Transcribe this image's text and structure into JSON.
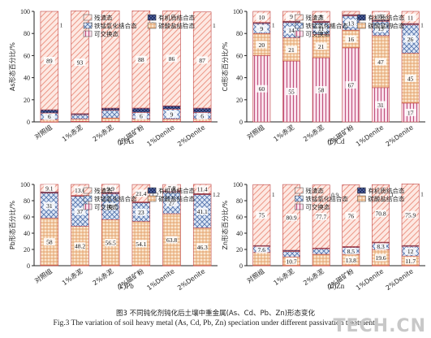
{
  "figure": {
    "caption_cn": "图3 不同钝化剂钝化后土壤中重金属(As、Cd、Pb、Zn)形态变化",
    "caption_en": "Fig.3 The variation of soil heavy metal (As, Cd, Pb, Zn) speciation under different passivation treatments",
    "watermark": "TECH.CN"
  },
  "colors": {
    "residual": "#f0a090",
    "organic": "#3a4f8c",
    "femn": "#9fb6d9",
    "carbonate": "#f2c08c",
    "exchangeable": "#c0507c",
    "bar_border": "#c04545",
    "axis": "#222222"
  },
  "chart_data": [
    {
      "type": "bar",
      "stacked": true,
      "panel_label": "(a)As",
      "ylabel": "As形态百分比/%",
      "ylim": [
        0,
        100
      ],
      "yticks": [
        0,
        20,
        40,
        60,
        80,
        100
      ],
      "legend": [
        "残渣态",
        "有机质结合态",
        "铁锰氧化结合态",
        "碳酸盐结合态",
        "可交换态"
      ],
      "categories": [
        "对照组",
        "1%赤泥",
        "2%赤泥",
        "2%磁矿粉",
        "1%Denite",
        "2%Denite"
      ],
      "series": [
        {
          "name": "可交换态",
          "values": [
            0,
            0.5,
            0.5,
            0.5,
            0.5,
            0.5
          ],
          "labels": [
            "",
            "",
            "",
            "",
            "",
            ""
          ]
        },
        {
          "name": "碳酸盐结合态",
          "values": [
            2,
            2,
            3,
            2,
            2,
            2
          ],
          "labels": [
            "",
            "",
            "",
            "",
            "",
            ""
          ]
        },
        {
          "name": "铁锰氧化结合态",
          "values": [
            6,
            4,
            7,
            6,
            9,
            6
          ],
          "labels": [
            "6",
            "4",
            "",
            "6",
            "9",
            "6"
          ]
        },
        {
          "name": "有机质结合态",
          "values": [
            3,
            1,
            2,
            4,
            3,
            4
          ],
          "labels": [
            "3",
            "1",
            "",
            "4",
            "3",
            "4"
          ]
        },
        {
          "name": "残渣态",
          "values": [
            89,
            93,
            88,
            88,
            86,
            87
          ],
          "labels": [
            "89",
            "93",
            "",
            "88",
            "86",
            "87"
          ]
        }
      ],
      "annotations": [
        "1",
        "1",
        "1",
        "2",
        "1",
        "1"
      ]
    },
    {
      "type": "bar",
      "stacked": true,
      "panel_label": "(b)Cd",
      "ylabel": "Cd形态百分比/%",
      "ylim": [
        0,
        100
      ],
      "yticks": [
        0,
        20,
        40,
        60,
        80,
        100
      ],
      "legend": [
        "残渣态",
        "有机质结合态",
        "铁锰氧化结合态",
        "碳酸盐结合态",
        "可交换态"
      ],
      "categories": [
        "对照组",
        "1%赤泥",
        "2%赤泥",
        "2%磁矿粉",
        "1%Denite",
        "2%Denite"
      ],
      "series": [
        {
          "name": "可交换态",
          "values": [
            60,
            55,
            58,
            67,
            31,
            17
          ],
          "labels": [
            "60",
            "55",
            "58",
            "67",
            "31",
            "17"
          ]
        },
        {
          "name": "碳酸盐结合态",
          "values": [
            20,
            21,
            21,
            16,
            47,
            45
          ],
          "labels": [
            "20",
            "21",
            "21",
            "16",
            "47",
            "45"
          ]
        },
        {
          "name": "铁锰氧化结合态",
          "values": [
            9,
            14,
            11,
            13,
            13,
            26
          ],
          "labels": [
            "9",
            "14",
            "11",
            "13",
            "13",
            "26"
          ]
        },
        {
          "name": "有机质结合态",
          "values": [
            1,
            1,
            1,
            1,
            1,
            1
          ],
          "labels": [
            "",
            "",
            "",
            "",
            "",
            ""
          ]
        },
        {
          "name": "残渣态",
          "values": [
            10,
            9,
            9,
            3,
            8,
            11
          ],
          "labels": [
            "10",
            "9",
            "9",
            "3",
            "8",
            "11"
          ]
        }
      ],
      "annotations": [
        "1",
        "1",
        "1",
        "1",
        "1",
        "1"
      ]
    },
    {
      "type": "bar",
      "stacked": true,
      "panel_label": "(c)Pb",
      "ylabel": "Pb形态百分比/%",
      "ylim": [
        0,
        100
      ],
      "yticks": [
        0,
        20,
        40,
        60,
        80,
        100
      ],
      "legend": [
        "残渣态",
        "有机质结合态",
        "铁锰氧化结合态",
        "碳酸盐结合态",
        "可交换态"
      ],
      "categories": [
        "对照组",
        "1%赤泥",
        "2%赤泥",
        "2%磁矿粉",
        "1%Denite",
        "2%Denite"
      ],
      "series": [
        {
          "name": "可交换态",
          "values": [
            0.4,
            0.2,
            0.2,
            0.2,
            0.1,
            0.1
          ],
          "labels": [
            "0.4",
            "0.2",
            "0.2",
            "0.2",
            "0.1",
            "0.1"
          ]
        },
        {
          "name": "碳酸盐结合态",
          "values": [
            58,
            48.2,
            56.5,
            54.1,
            63.8,
            46.3
          ],
          "labels": [
            "58",
            "48.2",
            "56.5",
            "54.1",
            "63.8",
            "46.3"
          ]
        },
        {
          "name": "铁锰氧化结合态",
          "values": [
            31,
            37,
            32,
            23,
            27,
            41.1
          ],
          "labels": [
            "31",
            "37",
            "32",
            "23",
            "27",
            "41.1"
          ]
        },
        {
          "name": "有机质结合态",
          "values": [
            1.5,
            1,
            1.5,
            1.2,
            1.2,
            1.2
          ],
          "labels": [
            "",
            "",
            "",
            "1.2",
            "",
            "1.2"
          ]
        },
        {
          "name": "残渣态",
          "values": [
            9.1,
            13.6,
            9.9,
            21.4,
            7.8,
            11.4
          ],
          "labels": [
            "9.1",
            "13.6",
            "9.9",
            "21.4",
            "7.8",
            "11.4"
          ]
        }
      ],
      "annotations": [
        "",
        "",
        "",
        "1.2",
        "",
        "1.2"
      ]
    },
    {
      "type": "bar",
      "stacked": true,
      "panel_label": "(d)Zn",
      "ylabel": "Zn形态百分比/%",
      "ylim": [
        0,
        100
      ],
      "yticks": [
        0,
        20,
        40,
        60,
        80,
        100
      ],
      "legend": [
        "残渣态",
        "有机质结合态",
        "铁锰氧化结合态",
        "碳酸盐结合态",
        "可交换态"
      ],
      "categories": [
        "对照组",
        "1%赤泥",
        "2%赤泥",
        "2%磁矿粉",
        "1%Denite",
        "2%Denite"
      ],
      "series": [
        {
          "name": "可交换态",
          "values": [
            0.3,
            0.1,
            0.1,
            0.1,
            0.1,
            0.1
          ],
          "labels": [
            "",
            "0.1",
            "",
            "",
            "0.1",
            "0.1"
          ]
        },
        {
          "name": "碳酸盐结合态",
          "values": [
            15.9,
            10.7,
            13.9,
            13.8,
            19.6,
            11.7
          ],
          "labels": [
            "",
            "10.7",
            "",
            "13.8",
            "19.6",
            "11.7"
          ]
        },
        {
          "name": "铁锰氧化结合态",
          "values": [
            7.6,
            6.8,
            6.8,
            8.5,
            8.3,
            12
          ],
          "labels": [
            "7.6",
            "6.8",
            "6.8",
            "8.5",
            "8.3",
            "12"
          ]
        },
        {
          "name": "有机质结合态",
          "values": [
            1,
            1.4,
            0.9,
            1.2,
            1,
            1
          ],
          "labels": [
            "",
            "",
            "0.9",
            "",
            "",
            ""
          ]
        },
        {
          "name": "残渣态",
          "values": [
            75,
            80.9,
            77.7,
            76,
            70.8,
            75.9
          ],
          "labels": [
            "75",
            "80.9",
            "77.7",
            "76",
            "70.8",
            "75.9"
          ]
        }
      ],
      "annotations": [
        "1",
        "",
        "0.9",
        "",
        "1",
        "1"
      ]
    }
  ]
}
